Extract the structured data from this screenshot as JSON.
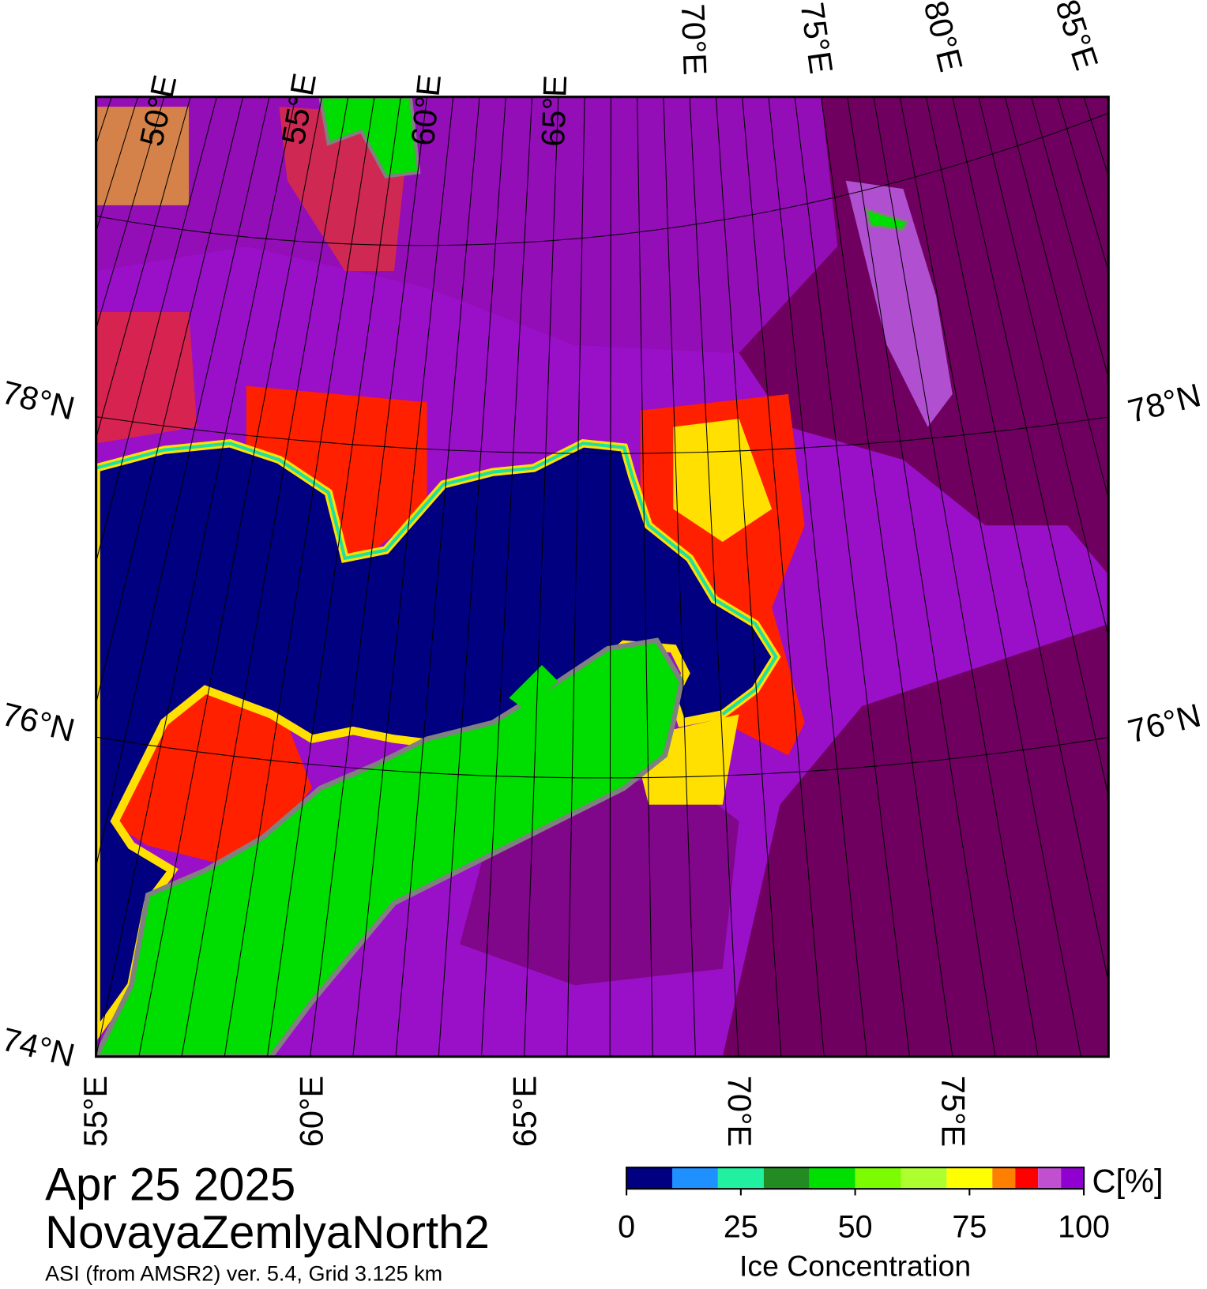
{
  "map": {
    "top_labels": [
      "50°E",
      "55°E",
      "60°E",
      "65°E",
      "70°E",
      "75°E",
      "80°E",
      "85°E"
    ],
    "bottom_labels": [
      "55°E",
      "60°E",
      "65°E",
      "70°E",
      "75°E"
    ],
    "left_labels": [
      "78°N",
      "76°N",
      "74°N"
    ],
    "right_labels": [
      "78°N",
      "76°N"
    ]
  },
  "caption": {
    "date": "Apr 25 2025",
    "region": "NovayaZemlyaNorth2",
    "source": "ASI (from AMSR2) ver. 5.4,  Grid 3.125 km"
  },
  "colorbar": {
    "unit": "C[%]",
    "title": "Ice Concentration",
    "ticks": [
      0,
      25,
      50,
      75,
      100
    ],
    "bounds": [
      0,
      10,
      20,
      30,
      40,
      50,
      60,
      70,
      80,
      85,
      90,
      95,
      100
    ],
    "colors": [
      "#000080",
      "#1e90ff",
      "#20f0a0",
      "#228b22",
      "#00e000",
      "#7cfc00",
      "#adff2f",
      "#ffff00",
      "#ff8000",
      "#ff0000",
      "#c050d0",
      "#9000d0"
    ]
  }
}
